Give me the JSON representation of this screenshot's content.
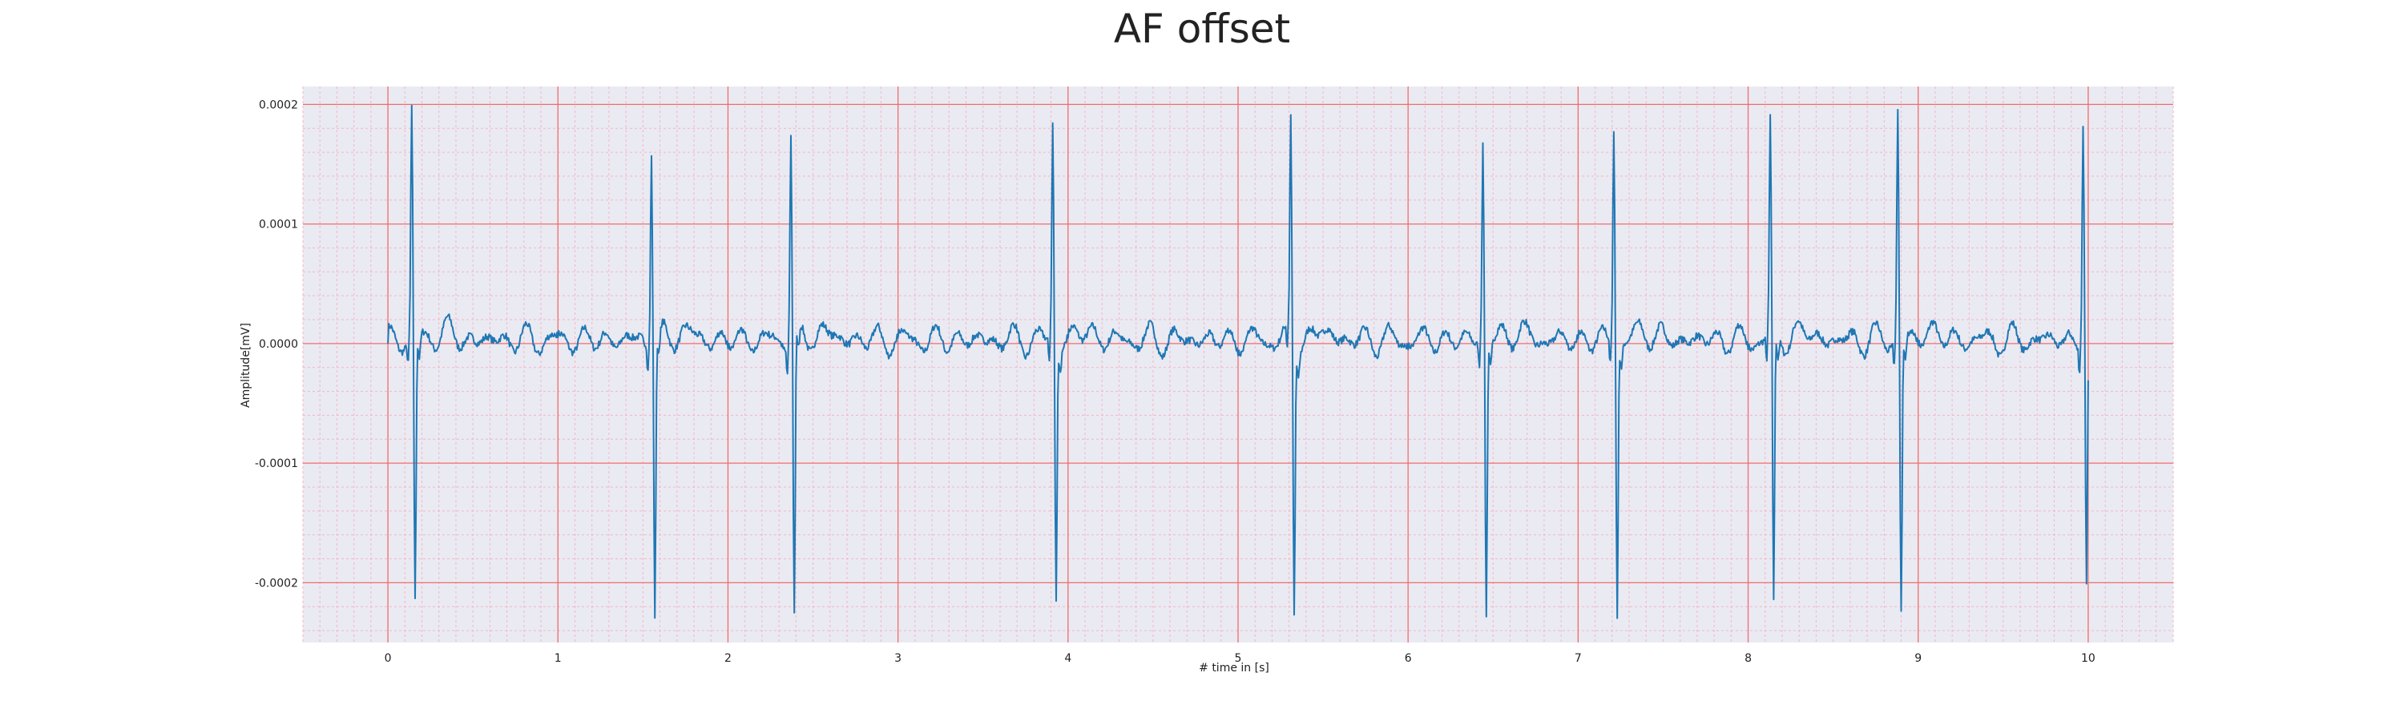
{
  "chart_data": {
    "type": "line",
    "title": "AF offset",
    "xlabel": "# time in [s]",
    "ylabel": "Amplitude[mV]",
    "xlim": [
      -0.5,
      10.5
    ],
    "ylim": [
      -0.00025,
      0.000215
    ],
    "x_ticks": [
      0,
      1,
      2,
      3,
      4,
      5,
      6,
      7,
      8,
      9,
      10
    ],
    "x_tick_labels": [
      "0",
      "1",
      "2",
      "3",
      "4",
      "5",
      "6",
      "7",
      "8",
      "9",
      "10"
    ],
    "y_ticks": [
      0.0002,
      0.0001,
      0.0,
      -0.0001,
      -0.0002
    ],
    "y_tick_labels": [
      "0.0002",
      "0.0001",
      "0.0000",
      "-0.0001",
      "-0.0002"
    ],
    "grid": true,
    "sampling_rate_hz": 200,
    "duration_s": 10,
    "qrs_complexes": [
      {
        "t": 0.14,
        "r": 0.000192,
        "s": -0.000222
      },
      {
        "t": 1.55,
        "r": 0.000164,
        "s": -0.000227
      },
      {
        "t": 2.37,
        "r": 0.000176,
        "s": -0.000232
      },
      {
        "t": 3.91,
        "r": 0.000182,
        "s": -0.000216
      },
      {
        "t": 5.31,
        "r": 0.000182,
        "s": -0.000227
      },
      {
        "t": 6.44,
        "r": 0.000164,
        "s": -0.000229
      },
      {
        "t": 7.21,
        "r": 0.000183,
        "s": -0.000227
      },
      {
        "t": 8.13,
        "r": 0.000181,
        "s": -0.000226
      },
      {
        "t": 8.88,
        "r": 0.000192,
        "s": -0.000227
      },
      {
        "t": 9.97,
        "r": 0.000183,
        "s": -0.000208
      }
    ],
    "colors": {
      "line": "#1f77b4",
      "plot_bg": "#eaeaf2",
      "major_grid": "#f26c6c",
      "minor_grid": "#f4b6c6"
    }
  }
}
